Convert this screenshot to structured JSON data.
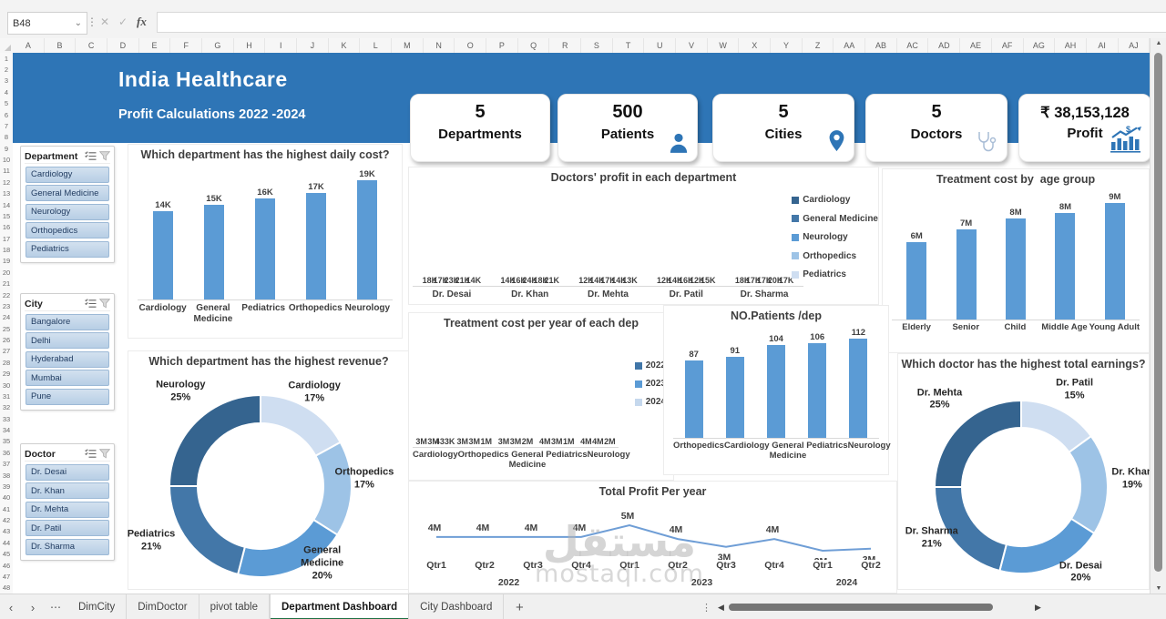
{
  "spreadsheet": {
    "name_box": "B48",
    "formula_bar_value": "",
    "columns": [
      "A",
      "B",
      "C",
      "D",
      "E",
      "F",
      "G",
      "H",
      "I",
      "J",
      "K",
      "L",
      "M",
      "N",
      "O",
      "P",
      "Q",
      "R",
      "S",
      "T",
      "U",
      "V",
      "W",
      "X",
      "Y",
      "Z",
      "AA",
      "AB",
      "AC",
      "AD",
      "AE",
      "AF",
      "AG",
      "AH",
      "AI",
      "AJ"
    ],
    "first_row": 1,
    "last_row": 48
  },
  "header": {
    "title": "India Healthcare",
    "subtitle": "Profit Calculations 2022 -2024"
  },
  "colors": {
    "header_blue": "#2e75b6",
    "bar_blue": "#5b9bd5",
    "tab_active_green": "#1e7145"
  },
  "kpis": [
    {
      "value": "5",
      "label": "Departments",
      "icon": ""
    },
    {
      "value": "500",
      "label": "Patients",
      "icon": "person-icon"
    },
    {
      "value": "5",
      "label": "Cities",
      "icon": "location-pin-icon"
    },
    {
      "value": "5",
      "label": "Doctors",
      "icon": "stethoscope-icon"
    },
    {
      "value": "₹ 38,153,128",
      "label": "Profit",
      "icon": "money-growth-icon"
    }
  ],
  "slicers": [
    {
      "title": "Department",
      "items": [
        "Cardiology",
        "General Medicine",
        "Neurology",
        "Orthopedics",
        "Pediatrics"
      ]
    },
    {
      "title": "City",
      "items": [
        "Bangalore",
        "Delhi",
        "Hyderabad",
        "Mumbai",
        "Pune"
      ]
    },
    {
      "title": "Doctor",
      "items": [
        "Dr. Desai",
        "Dr. Khan",
        "Dr. Mehta",
        "Dr. Patil",
        "Dr. Sharma"
      ]
    }
  ],
  "chart_data": [
    {
      "id": "daily-cost",
      "type": "bar",
      "title": "Which department has the highest daily cost?",
      "categories": [
        "Cardiology",
        "General Medicine",
        "Pediatrics",
        "Orthopedics",
        "Neurology"
      ],
      "values": [
        14,
        15,
        16,
        17,
        19
      ],
      "labels": [
        "14K",
        "15K",
        "16K",
        "17K",
        "19K"
      ],
      "bar_color": "#5b9bd5",
      "ylim": [
        0,
        22
      ]
    },
    {
      "id": "doctors-profit",
      "type": "bar",
      "grouped": true,
      "title": "Doctors' profit in each department",
      "categories": [
        "Dr. Desai",
        "Dr. Khan",
        "Dr. Mehta",
        "Dr. Patil",
        "Dr. Sharma"
      ],
      "series": [
        {
          "name": "Cardiology",
          "color": "#35648f",
          "values": [
            18,
            14,
            12,
            12,
            18
          ],
          "labels": [
            "18K",
            "14K",
            "12K",
            "12K",
            "18K"
          ]
        },
        {
          "name": "General Medicine",
          "color": "#4377a8",
          "values": [
            17,
            16,
            14,
            14,
            17
          ],
          "labels": [
            "17K",
            "16K",
            "14K",
            "14K",
            "17K"
          ]
        },
        {
          "name": "Neurology",
          "color": "#5b9bd5",
          "values": [
            23,
            24,
            17,
            16,
            17
          ],
          "labels": [
            "23K",
            "24K",
            "17K",
            "16K",
            "17K"
          ]
        },
        {
          "name": "Orthopedics",
          "color": "#9dc3e6",
          "values": [
            21,
            18,
            14,
            12,
            20
          ],
          "labels": [
            "21K",
            "18K",
            "14K",
            "12K",
            "20K"
          ]
        },
        {
          "name": "Pediatrics",
          "color": "#cfdef1",
          "values": [
            14,
            21,
            13,
            15,
            17
          ],
          "labels": [
            "14K",
            "21K",
            "13K",
            "15K",
            "17K"
          ]
        }
      ],
      "legend_position": "right",
      "ylim": [
        0,
        28
      ]
    },
    {
      "id": "age-group-cost",
      "type": "bar",
      "title": "Treatment cost by  age group",
      "categories": [
        "Elderly",
        "Senior",
        "Child",
        "Middle Age",
        "Young Adult"
      ],
      "values": [
        5.9,
        6.9,
        7.7,
        8.1,
        8.9
      ],
      "labels": [
        "6M",
        "7M",
        "8M",
        "8M",
        "9M"
      ],
      "bar_color": "#5b9bd5",
      "ylim": [
        0,
        10.2
      ]
    },
    {
      "id": "dept-revenue",
      "type": "pie",
      "donut": true,
      "title": "Which department has the highest revenue?",
      "slices": [
        {
          "name": "Cardiology",
          "pct": 17,
          "color": "#cfdef1"
        },
        {
          "name": "Orthopedics",
          "pct": 17,
          "color": "#9dc3e6"
        },
        {
          "name": "General Medicine",
          "pct": 20,
          "color": "#5b9bd5"
        },
        {
          "name": "Pediatrics",
          "pct": 21,
          "color": "#4377a8"
        },
        {
          "name": "Neurology",
          "pct": 25,
          "color": "#35648f"
        }
      ],
      "start_angle_deg": 0,
      "clockwise": true
    },
    {
      "id": "cost-per-year",
      "type": "bar",
      "grouped": true,
      "title": "Treatment cost per year of each dep",
      "categories": [
        "Cardiology",
        "Orthopedics",
        "General Medicine",
        "Pediatrics",
        "Neurology"
      ],
      "series": [
        {
          "name": "2022",
          "color": "#4076a8",
          "values": [
            3.3,
            2.9,
            3.3,
            3.9,
            4.4
          ],
          "labels": [
            "3M",
            "3M",
            "3M",
            "4M",
            "4M"
          ]
        },
        {
          "name": "2023",
          "color": "#5b9bd5",
          "values": [
            3.0,
            3.1,
            3.2,
            3.2,
            4.3
          ],
          "labels": [
            "3M",
            "3M",
            "3M",
            "3M",
            "4M"
          ]
        },
        {
          "name": "2024",
          "color": "#c5d8ed",
          "values": [
            0.433,
            1.3,
            1.7,
            1.3,
            1.6
          ],
          "labels": [
            "433K",
            "1M",
            "2M",
            "1M",
            "2M"
          ]
        }
      ],
      "legend_position": "right",
      "ylim": [
        0,
        5.1
      ]
    },
    {
      "id": "patients-per-dep",
      "type": "bar",
      "title": "NO.Patients /dep",
      "categories": [
        "Orthopedics",
        "Cardiology",
        "General Medicine",
        "Pediatrics",
        "Neurology"
      ],
      "values": [
        87,
        91,
        104,
        106,
        112
      ],
      "labels": [
        "87",
        "91",
        "104",
        "106",
        "112"
      ],
      "bar_color": "#5b9bd5",
      "ylim": [
        0,
        130
      ]
    },
    {
      "id": "doctor-earnings",
      "type": "pie",
      "donut": true,
      "title": "Which doctor has the highest total earnings?",
      "slices": [
        {
          "name": "Dr. Patil",
          "pct": 15,
          "color": "#cfdef1"
        },
        {
          "name": "Dr. Khan",
          "pct": 19,
          "color": "#9dc3e6"
        },
        {
          "name": "Dr. Desai",
          "pct": 20,
          "color": "#5b9bd5"
        },
        {
          "name": "Dr. Sharma",
          "pct": 21,
          "color": "#4377a8"
        },
        {
          "name": "Dr. Mehta",
          "pct": 25,
          "color": "#35648f"
        }
      ],
      "start_angle_deg": 0,
      "clockwise": true
    },
    {
      "id": "total-profit-per-year",
      "type": "line",
      "title": "Total Profit Per year",
      "x": [
        "Qtr1",
        "Qtr2",
        "Qtr3",
        "Qtr4",
        "Qtr1",
        "Qtr2",
        "Qtr3",
        "Qtr4",
        "Qtr1",
        "Qtr2"
      ],
      "year_groups": [
        {
          "label": "2022",
          "count": 4
        },
        {
          "label": "2023",
          "count": 4
        },
        {
          "label": "2024",
          "count": 2
        }
      ],
      "values": [
        4,
        4,
        4,
        4,
        4.6,
        3.9,
        3.5,
        3.9,
        3.3,
        3.4
      ],
      "labels": [
        "4M",
        "4M",
        "4M",
        "4M",
        "5M",
        "4M",
        "3M",
        "4M",
        "3M",
        "3M"
      ],
      "line_color": "#6f9ed6",
      "ylim": [
        2.5,
        5.5
      ]
    }
  ],
  "sheet_bar": {
    "sheets": [
      {
        "label": "DimCity",
        "active": false
      },
      {
        "label": "DimDoctor",
        "active": false
      },
      {
        "label": "pivot table",
        "active": false
      },
      {
        "label": "Department Dashboard",
        "active": true
      },
      {
        "label": "City Dashboard",
        "active": false
      }
    ],
    "add_sheet_label": "+"
  },
  "watermark": {
    "line1": "مستقل",
    "line2": "mostaql.com"
  }
}
